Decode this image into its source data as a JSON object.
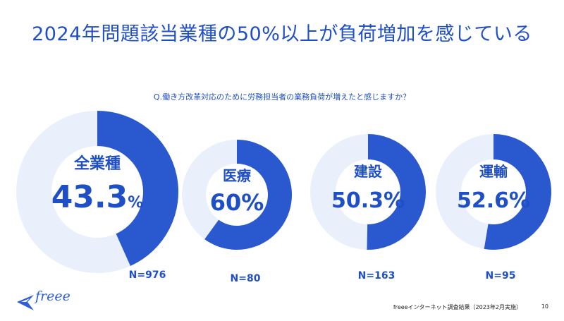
{
  "title": "2024年問題該当業種の50%以上が負荷増加を感じている",
  "question": "Q.働き方改革対応のために労務担当者の業務負荷が増えたと感じますか？",
  "chart_data": {
    "type": "pie",
    "title": "2024年問題該当業種の50%以上が負荷増加を感じている",
    "subtitle": "Q.働き方改革対応のために労務担当者の業務負荷が増えたと感じますか？",
    "series": [
      {
        "label": "全業種",
        "value": 43.3,
        "display": "43.3",
        "unit": "%",
        "n": "N=976"
      },
      {
        "label": "医療",
        "value": 60,
        "display": "60%",
        "unit": "",
        "n": "N=80"
      },
      {
        "label": "建設",
        "value": 50.3,
        "display": "50.3%",
        "unit": "",
        "n": "N=163"
      },
      {
        "label": "運輸",
        "value": 52.6,
        "display": "52.6%",
        "unit": "",
        "n": "N=95"
      }
    ]
  },
  "colors": {
    "accent": "#2a59cf",
    "ring_bg": "#eaf0fb",
    "text": "#1f4fc6"
  },
  "footer": {
    "source": "freeeインターネット調査結果（2023年2月実施）",
    "page": "10"
  },
  "logo": {
    "text": "freee",
    "icon": "bird-icon"
  }
}
